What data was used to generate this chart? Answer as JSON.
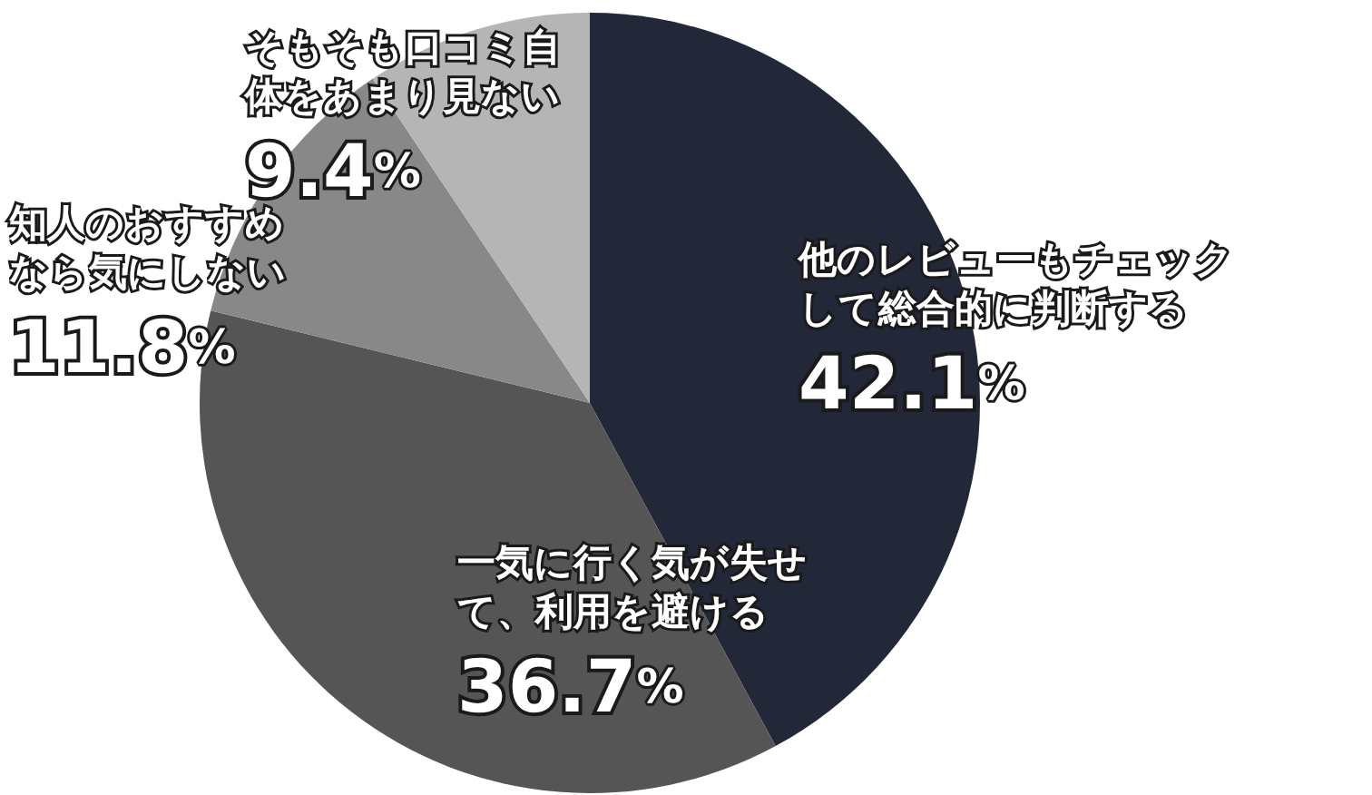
{
  "chart_data": {
    "type": "pie",
    "categories": [
      "他のレビューもチェックして総合的に判断する",
      "一気に行く気が失せて、利用を避ける",
      "知人のおすすめなら気にしない",
      "そもそも口コミ自体をあまり見ない"
    ],
    "values": [
      42.1,
      36.7,
      11.8,
      9.4
    ],
    "colors": [
      "#232838",
      "#555555",
      "#888888",
      "#b5b5b5"
    ],
    "value_labels": [
      "42.1%",
      "36.7%",
      "11.8%",
      "9.4%"
    ]
  }
}
